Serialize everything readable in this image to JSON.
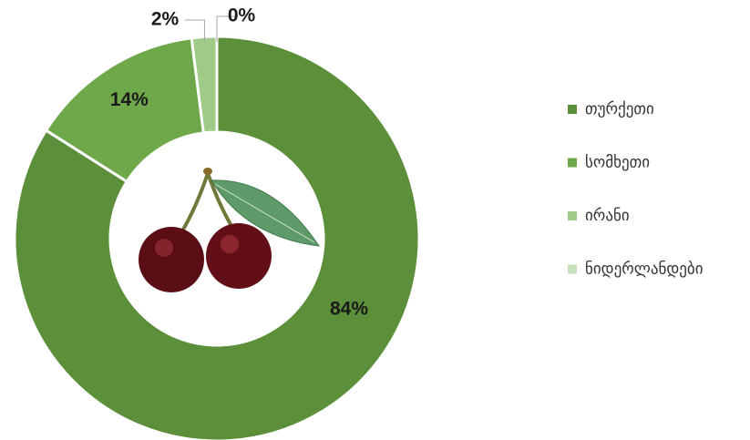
{
  "chart_data": {
    "type": "donut",
    "categories": [
      "თურქეთი",
      "სომხეთი",
      "ირანი",
      "ნიდერლანდები"
    ],
    "values": [
      84,
      14,
      2,
      0
    ],
    "value_labels": [
      "84%",
      "14%",
      "2%",
      "0%"
    ],
    "colors": [
      "#5b8f3a",
      "#6ea84a",
      "#9fca88",
      "#c7e2b8"
    ],
    "legend": "right"
  }
}
